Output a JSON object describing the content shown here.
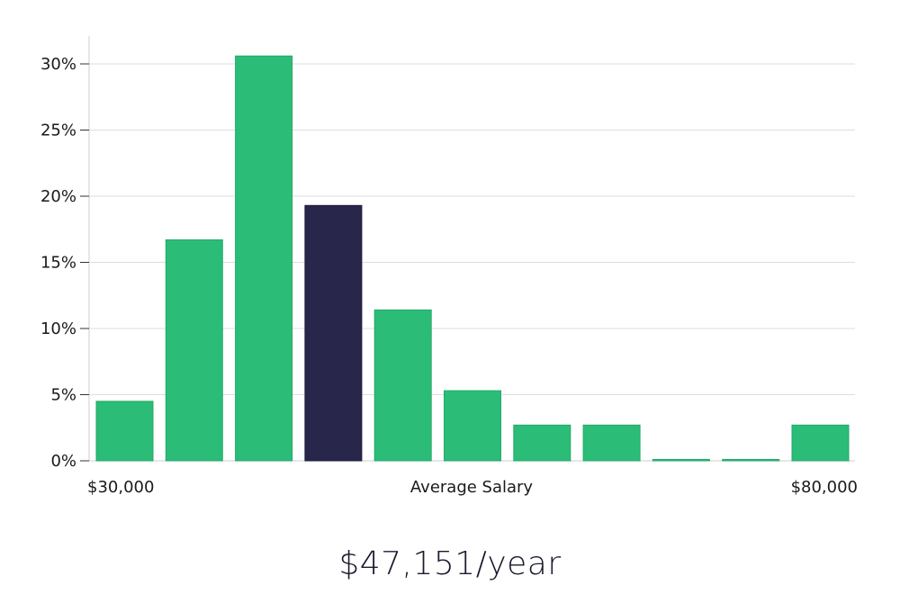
{
  "chart_data": {
    "type": "bar",
    "title": "",
    "xlabel": "Average Salary",
    "ylabel": "",
    "x_range_labels": {
      "min": "$30,000",
      "max": "$80,000"
    },
    "yticks": [
      "0%",
      "5%",
      "10%",
      "15%",
      "20%",
      "25%",
      "30%"
    ],
    "ylim": [
      0,
      30
    ],
    "grid": true,
    "legend": "none",
    "values": [
      4.5,
      16.7,
      30.6,
      19.3,
      11.4,
      5.3,
      2.7,
      2.7,
      0.1,
      0.1,
      2.7
    ],
    "highlight_index": 3,
    "colors": {
      "bar": "#2bbd77",
      "highlight": "#28264a",
      "grid": "#dddddd",
      "axis": "#cccccc"
    }
  },
  "caption": {
    "salary": "$47,151/year"
  }
}
